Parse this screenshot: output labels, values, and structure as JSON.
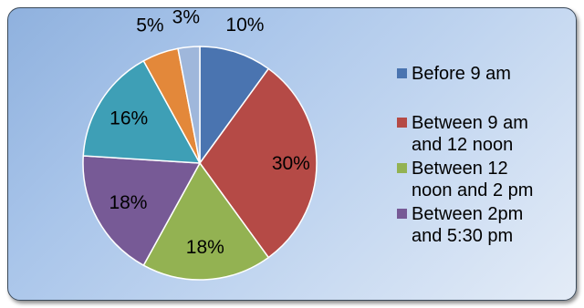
{
  "chart_data": {
    "type": "pie",
    "slices": [
      {
        "label": "Before 9 am",
        "value": 10,
        "display": "10%",
        "color": "#4a74b0"
      },
      {
        "label": "Between 9 am and 12 noon",
        "value": 30,
        "display": "30%",
        "color": "#b54a46"
      },
      {
        "label": "Between 12 noon and 2 pm",
        "value": 18,
        "display": "18%",
        "color": "#93b252"
      },
      {
        "label": "Between 2pm and 5:30 pm",
        "value": 18,
        "display": "18%",
        "color": "#775a96"
      },
      {
        "label": "",
        "value": 16,
        "display": "16%",
        "color": "#3e9fb6"
      },
      {
        "label": "",
        "value": 5,
        "display": "5%",
        "color": "#e3883a"
      },
      {
        "label": "",
        "value": 3,
        "display": "3%",
        "color": "#9fb7db"
      }
    ],
    "legend": {
      "placement": "right",
      "entries": [
        {
          "lines": [
            "Before 9 am"
          ],
          "color": "#4a74b0"
        },
        {
          "lines": [
            "Between 9 am",
            "and 12 noon"
          ],
          "color": "#b54a46"
        },
        {
          "lines": [
            "Between 12",
            "noon and 2 pm"
          ],
          "color": "#93b252"
        },
        {
          "lines": [
            "Between 2pm",
            "and 5:30 pm"
          ],
          "color": "#775a96"
        }
      ]
    }
  }
}
